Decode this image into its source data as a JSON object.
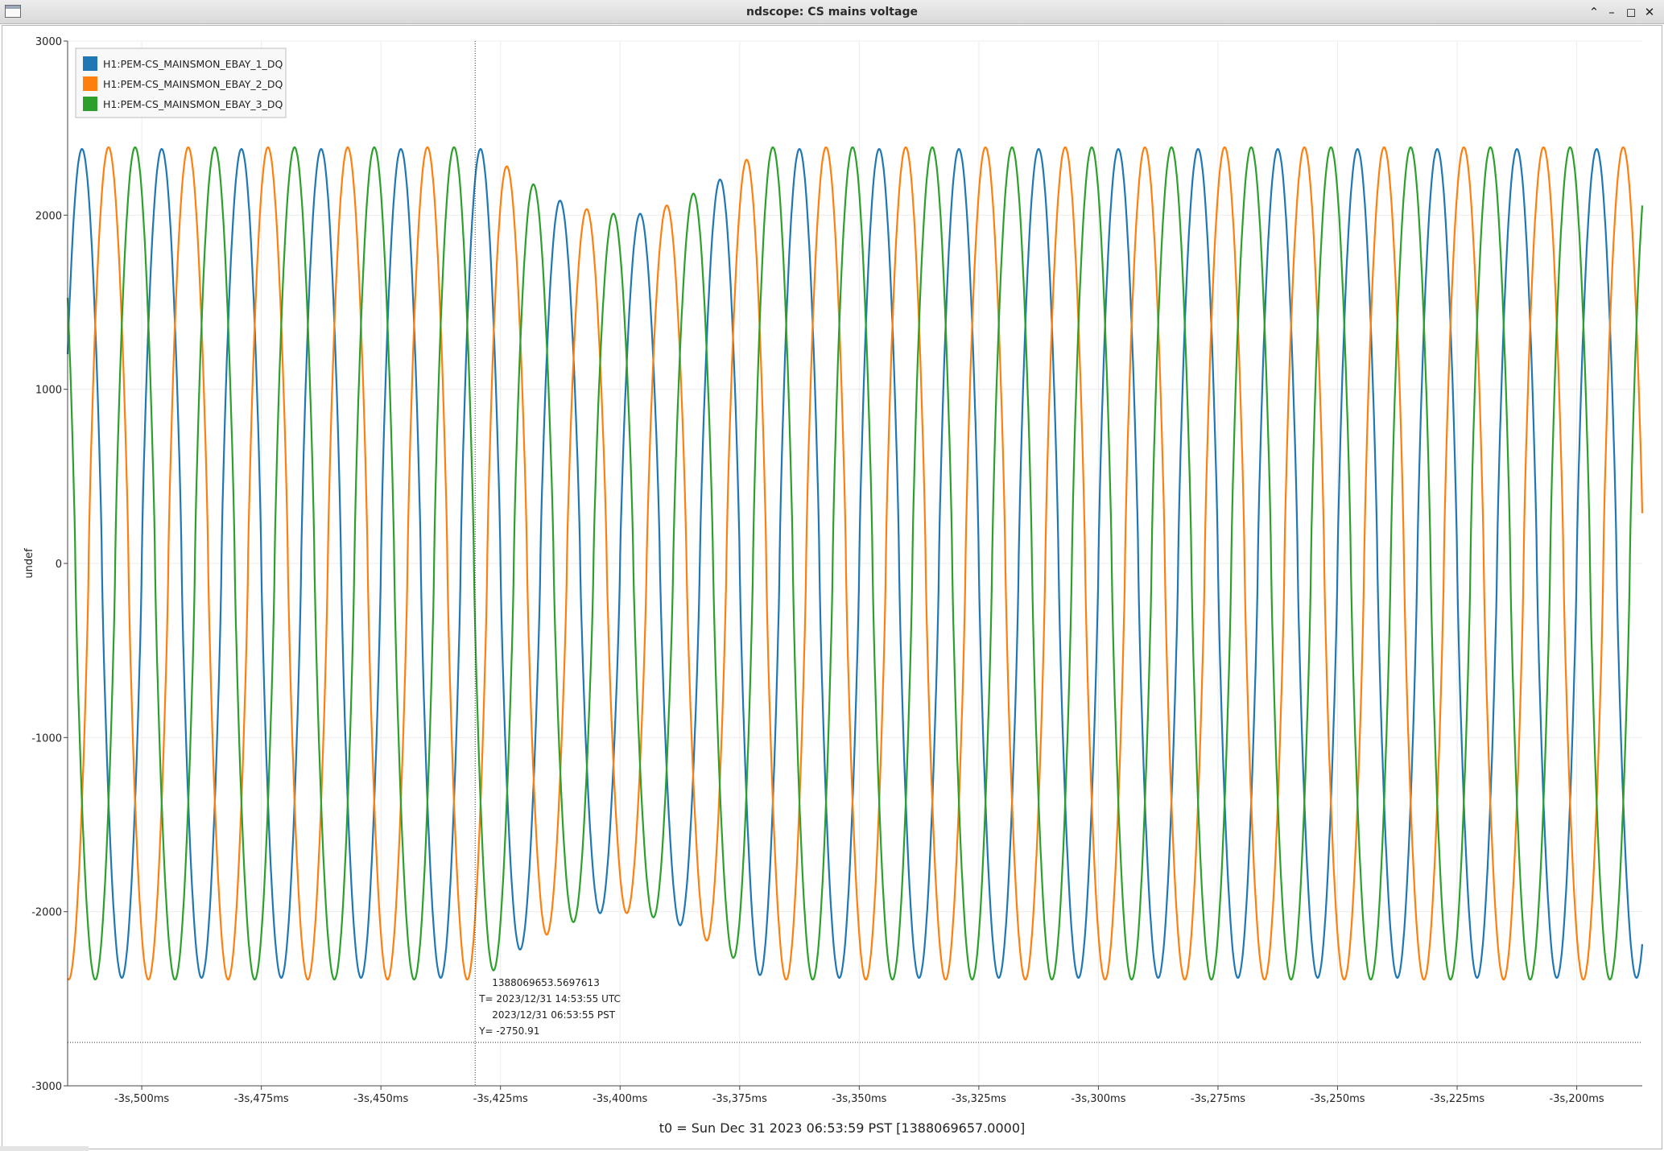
{
  "window": {
    "title": "ndscope: CS mains voltage",
    "controls": [
      "chevron-up-icon",
      "minimize-icon",
      "maximize-icon",
      "close-icon"
    ]
  },
  "chart_data": {
    "type": "line",
    "title": "",
    "ylabel": "undef",
    "xlabel": "t0 = Sun Dec 31 2023 06:53:59 PST [1388069657.0000]",
    "xlim": [
      -3.5155,
      -3.1863
    ],
    "ylim": [
      -3000,
      3000
    ],
    "y_ticks": [
      3000,
      2000,
      1000,
      0,
      -1000,
      -2000,
      -3000
    ],
    "x_ticks": [
      -3.5,
      -3.475,
      -3.45,
      -3.425,
      -3.4,
      -3.375,
      -3.35,
      -3.325,
      -3.3,
      -3.275,
      -3.25,
      -3.225,
      -3.2
    ],
    "x_tick_labels": [
      "-3s,500ms",
      "-3s,475ms",
      "-3s,450ms",
      "-3s,425ms",
      "-3s,400ms",
      "-3s,375ms",
      "-3s,350ms",
      "-3s,325ms",
      "-3s,300ms",
      "-3s,275ms",
      "-3s,250ms",
      "-3s,225ms",
      "-3s,200ms"
    ],
    "grid": true,
    "legend_position": "top-left",
    "series": [
      {
        "name": "H1:PEM-CS_MAINSMON_EBAY_1_DQ",
        "color": "#1f77b4",
        "amplitude": 2380,
        "frequency_hz": 60,
        "phase_deg": 0
      },
      {
        "name": "H1:PEM-CS_MAINSMON_EBAY_2_DQ",
        "color": "#ff7f0e",
        "amplitude": 2390,
        "frequency_hz": 60,
        "phase_deg": -120
      },
      {
        "name": "H1:PEM-CS_MAINSMON_EBAY_3_DQ",
        "color": "#2ca02c",
        "amplitude": 2390,
        "frequency_hz": 60,
        "phase_deg": 120
      }
    ],
    "sag_event": {
      "x_start": -3.429,
      "x_end": -3.37,
      "x_min": -3.4,
      "min_amplitude_fraction": 0.84
    },
    "cursor": {
      "x": -3.4303,
      "y": -2750.91,
      "label_lines": [
        "1388069653.5697613",
        "T= 2023/12/31 14:53:55 UTC",
        "2023/12/31 06:53:55 PST",
        "Y= -2750.91"
      ]
    }
  }
}
